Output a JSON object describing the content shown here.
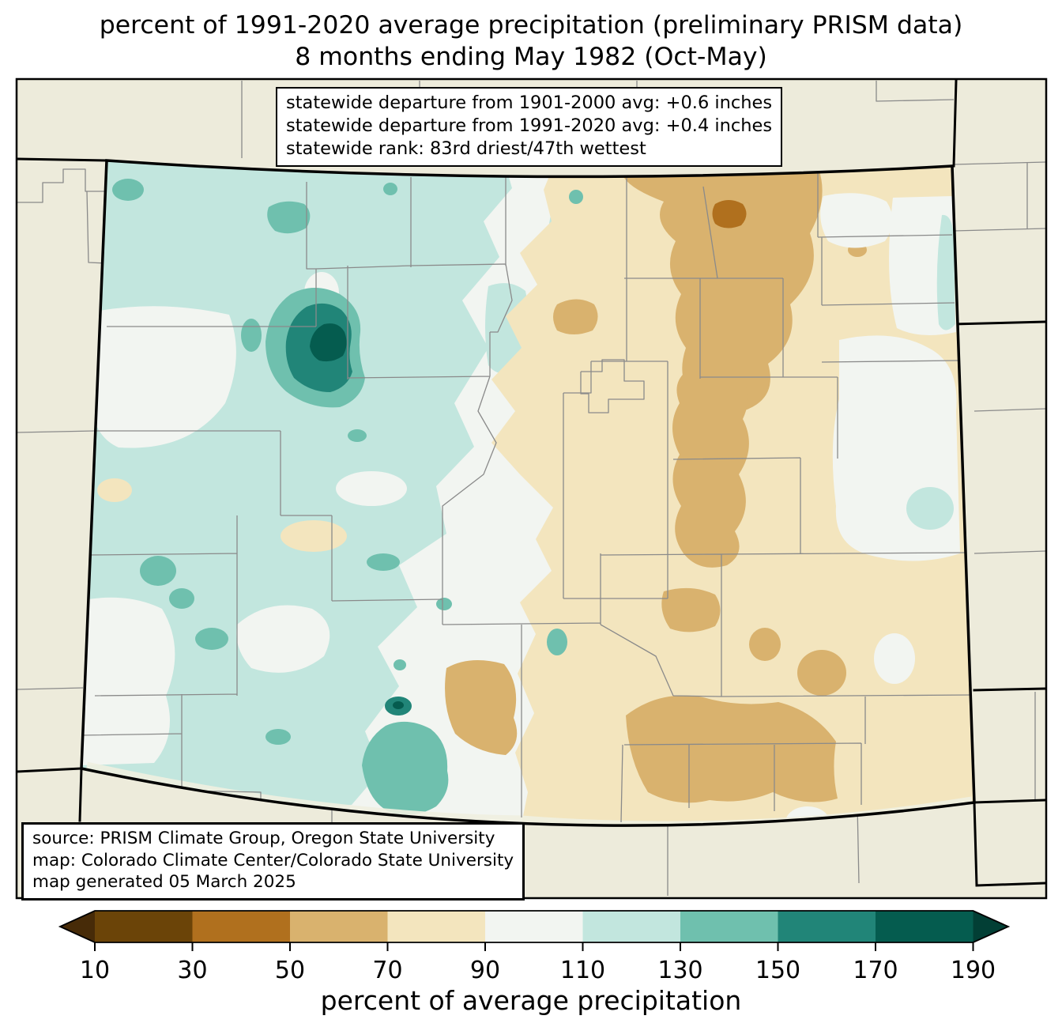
{
  "title": {
    "line1": "percent of 1991-2020 average precipitation (preliminary PRISM data)",
    "line2": "8 months ending May 1982 (Oct-May)"
  },
  "stats_box": {
    "line1": "statewide departure from 1901-2000 avg: +0.6 inches",
    "line2": "statewide departure from 1991-2020 avg: +0.4 inches",
    "line3": "statewide rank: 83rd driest/47th wettest"
  },
  "source_box": {
    "line1": "source: PRISM Climate Group, Oregon State University",
    "line2": "map: Colorado Climate Center/Colorado State University",
    "line3": "map generated 05 March 2025"
  },
  "colorbar": {
    "label": "percent of average precipitation",
    "ticks": [
      10,
      30,
      50,
      70,
      90,
      110,
      130,
      150,
      170,
      190
    ],
    "band_colors": [
      "#472B08",
      "#6B4408",
      "#B0701E",
      "#D9B26E",
      "#F3E5BE",
      "#F2F5F1",
      "#C2E6DE",
      "#6FC0AE",
      "#218578",
      "#055C4F",
      "#023F35"
    ],
    "band_ranges": [
      "<10",
      "10-30",
      "30-50",
      "50-70",
      "70-90",
      "90-110",
      "110-130",
      "130-150",
      "150-170",
      "170-190",
      ">190"
    ]
  },
  "palette": {
    "out_of_state": "#EDEBDB",
    "in_state_base": "#F2F5F1",
    "county_line": "#8A8A8A",
    "state_border": "#000000",
    "box_background": "#FFFFFF"
  },
  "map": {
    "region": "Colorado precipitation contour map"
  }
}
